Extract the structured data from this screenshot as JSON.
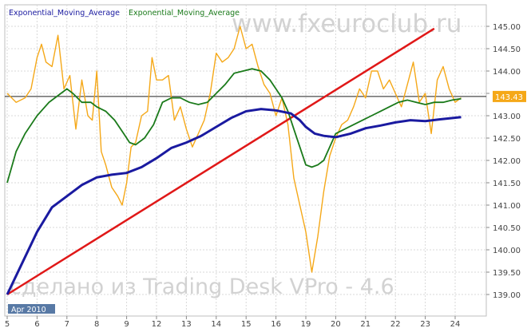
{
  "chart_data": {
    "type": "line",
    "legend": [
      {
        "label": "Exponential_Moving_Average",
        "color": "#1a1aa0"
      },
      {
        "label": "Exponential_Moving_Average",
        "color": "#1a7a1a"
      }
    ],
    "watermark_top": "www.fxeuroclub.ru",
    "watermark_bottom": "сделано из Trading Desk VPro - 4.6",
    "period_label": "Apr 2010",
    "x_ticks": [
      "5",
      "6",
      "7",
      "8",
      "9",
      "12",
      "13",
      "14",
      "15",
      "16",
      "19",
      "20",
      "21",
      "22",
      "23",
      "24"
    ],
    "y_ticks": [
      "145.00",
      "144.50",
      "144.00",
      "143.50",
      "143.00",
      "142.50",
      "142.00",
      "141.50",
      "141.00",
      "140.50",
      "140.00",
      "139.50",
      "139.00"
    ],
    "ylim": [
      138.9,
      145.3
    ],
    "xlim": [
      0,
      15.5
    ],
    "current_price": "143.43",
    "horizontal_line": 143.43,
    "colors": {
      "price": "#f5a818",
      "ema_fast": "#1a7a1a",
      "ema_slow": "#1a1aa0",
      "trendline": "#e01818",
      "price_label_bg": "#f5a818"
    },
    "trendline": {
      "x": [
        0,
        14.3
      ],
      "y": [
        139.0,
        144.95
      ]
    },
    "price": {
      "x": [
        0,
        0.3,
        0.6,
        0.8,
        1.0,
        1.15,
        1.3,
        1.5,
        1.7,
        1.9,
        2.1,
        2.3,
        2.5,
        2.7,
        2.85,
        3.0,
        3.15,
        3.3,
        3.5,
        3.7,
        3.85,
        4.0,
        4.15,
        4.3,
        4.5,
        4.7,
        4.85,
        5.0,
        5.2,
        5.4,
        5.6,
        5.8,
        6.0,
        6.2,
        6.4,
        6.6,
        6.8,
        7.0,
        7.2,
        7.4,
        7.6,
        7.8,
        8.0,
        8.2,
        8.4,
        8.6,
        8.8,
        9.0,
        9.2,
        9.4,
        9.6,
        9.8,
        10.0,
        10.2,
        10.4,
        10.6,
        10.8,
        11.0,
        11.2,
        11.4,
        11.6,
        11.8,
        12.0,
        12.2,
        12.4,
        12.6,
        12.8,
        13.0,
        13.2,
        13.4,
        13.6,
        13.8,
        14.0,
        14.2,
        14.4,
        14.6,
        14.8,
        15.0,
        15.2
      ],
      "y": [
        143.5,
        143.3,
        143.4,
        143.6,
        144.3,
        144.6,
        144.2,
        144.1,
        144.8,
        143.6,
        143.9,
        142.7,
        143.8,
        143.0,
        142.9,
        144.0,
        142.2,
        141.9,
        141.4,
        141.2,
        141.0,
        141.5,
        142.3,
        142.4,
        143.0,
        143.1,
        144.3,
        143.8,
        143.8,
        143.9,
        142.9,
        143.2,
        142.7,
        142.3,
        142.6,
        142.9,
        143.5,
        144.4,
        144.2,
        144.3,
        144.5,
        145.0,
        144.5,
        144.6,
        144.1,
        143.7,
        143.5,
        143.0,
        143.4,
        142.8,
        141.6,
        141.0,
        140.4,
        139.5,
        140.3,
        141.3,
        142.1,
        142.5,
        142.8,
        142.9,
        143.2,
        143.6,
        143.4,
        144.0,
        144.0,
        143.6,
        143.8,
        143.5,
        143.2,
        143.7,
        144.2,
        143.3,
        143.5,
        142.6,
        143.8,
        144.1,
        143.6,
        143.3,
        143.4
      ]
    },
    "ema_fast": {
      "x": [
        0,
        0.3,
        0.6,
        1.0,
        1.4,
        1.8,
        2.0,
        2.2,
        2.5,
        2.8,
        3.0,
        3.3,
        3.6,
        3.9,
        4.1,
        4.3,
        4.6,
        4.9,
        5.2,
        5.5,
        5.8,
        6.1,
        6.4,
        6.7,
        7.0,
        7.3,
        7.6,
        7.9,
        8.2,
        8.5,
        8.8,
        9.0,
        9.2,
        9.4,
        9.6,
        9.8,
        10.0,
        10.2,
        10.4,
        10.6,
        10.8,
        11.0,
        11.3,
        11.6,
        11.9,
        12.2,
        12.5,
        12.8,
        13.1,
        13.4,
        13.7,
        14.0,
        14.3,
        14.6,
        14.9,
        15.2
      ],
      "y": [
        141.5,
        142.2,
        142.6,
        143.0,
        143.3,
        143.5,
        143.6,
        143.5,
        143.3,
        143.3,
        143.2,
        143.1,
        142.9,
        142.6,
        142.4,
        142.35,
        142.5,
        142.8,
        143.3,
        143.4,
        143.4,
        143.3,
        143.25,
        143.3,
        143.5,
        143.7,
        143.95,
        144.0,
        144.05,
        144.0,
        143.8,
        143.6,
        143.4,
        143.1,
        142.7,
        142.3,
        141.9,
        141.85,
        141.9,
        142.0,
        142.3,
        142.6,
        142.7,
        142.8,
        142.9,
        143.0,
        143.1,
        143.2,
        143.3,
        143.35,
        143.3,
        143.25,
        143.3,
        143.3,
        143.35,
        143.38
      ]
    },
    "ema_slow": {
      "x": [
        0,
        0.5,
        1.0,
        1.5,
        2.0,
        2.5,
        3.0,
        3.5,
        4.0,
        4.5,
        5.0,
        5.5,
        6.0,
        6.5,
        7.0,
        7.5,
        8.0,
        8.5,
        9.0,
        9.5,
        9.8,
        10.0,
        10.3,
        10.6,
        11.0,
        11.5,
        12.0,
        12.5,
        13.0,
        13.5,
        14.0,
        14.5,
        15.2
      ],
      "y": [
        139.0,
        139.7,
        140.4,
        140.95,
        141.2,
        141.45,
        141.62,
        141.68,
        141.72,
        141.85,
        142.05,
        142.28,
        142.4,
        142.55,
        142.75,
        142.95,
        143.1,
        143.15,
        143.12,
        143.05,
        142.9,
        142.75,
        142.6,
        142.55,
        142.52,
        142.6,
        142.72,
        142.78,
        142.85,
        142.9,
        142.88,
        142.92,
        142.97
      ]
    }
  }
}
